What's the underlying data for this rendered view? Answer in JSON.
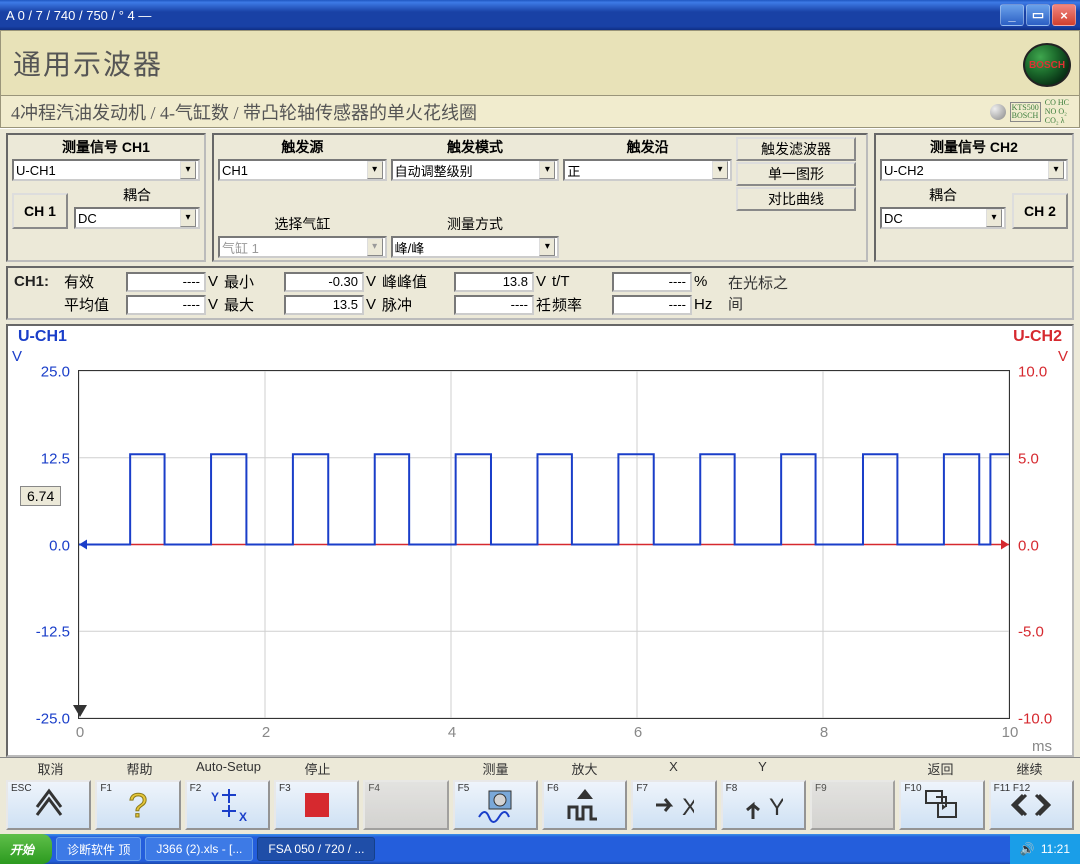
{
  "titlebar": {
    "caption": " A  0 / 7   / 740 / 750 / ° 4 —"
  },
  "header": {
    "title": "通用示波器",
    "logo_text": "BOSCH"
  },
  "breadcrumb": "4冲程汽油发动机 / 4-气缸数 / 带凸轮轴传感器的单火花线圈",
  "ctrl": {
    "ch1_sig_label": "测量信号 CH1",
    "ch1_sig_value": "U-CH1",
    "ch1_couple_label": "耦合",
    "ch1_couple_value": "DC",
    "ch1_btn": "CH 1",
    "trig_src_label": "触发源",
    "trig_src_value": "CH1",
    "trig_mode_label": "触发模式",
    "trig_mode_value": "自动调整级别",
    "trig_slope_label": "触发沿",
    "trig_slope_value": "正",
    "sel_cyl_label": "选择气缸",
    "sel_cyl_value": "气缸 1",
    "meas_mode_label": "测量方式",
    "meas_mode_value": "峰/峰",
    "btn_filter": "触发滤波器",
    "btn_single": "单一图形",
    "btn_compare": "对比曲线",
    "ch2_sig_label": "测量信号 CH2",
    "ch2_sig_value": "U-CH2",
    "ch2_couple_label": "耦合",
    "ch2_couple_value": "DC",
    "ch2_btn": "CH 2"
  },
  "meas": {
    "ch_label": "CH1:",
    "rms_l": "有效",
    "rms_v": "----",
    "rms_u": "V",
    "min_l": "最小",
    "min_v": "-0.30",
    "min_u": "V",
    "pp_l": "峰峰值",
    "pp_v": "13.8",
    "pp_u": "V",
    "tT_l": "t/T",
    "tT_v": "----",
    "tT_u": "%",
    "avg_l": "平均值",
    "avg_v": "----",
    "avg_u": "V",
    "max_l": "最大",
    "max_v": "13.5",
    "max_u": "V",
    "pul_l": "脉冲",
    "pul_v": "----",
    "pul_u": "祍",
    "frq_l": "频率",
    "frq_v": "----",
    "frq_u": "Hz",
    "cursor_note": "在光标之间"
  },
  "wave": {
    "ch1_name": "U-CH1",
    "ch2_name": "U-CH2",
    "ch1_color": "#1a3ec9",
    "ch2_color": "#d6292f",
    "grid_color": "#cfcfcf",
    "bg": "#ffffff",
    "y1_unit": "V",
    "y2_unit": "V",
    "x_unit": "ms",
    "y1_ticks": [
      25.0,
      12.5,
      0.0,
      -12.5,
      -25.0
    ],
    "y2_ticks": [
      10.0,
      5.0,
      0.0,
      -5.0,
      -10.0
    ],
    "x_ticks": [
      0,
      2,
      4,
      6,
      8,
      10
    ],
    "xlim": [
      0,
      10
    ],
    "y1lim": [
      -25,
      25
    ],
    "y2lim": [
      -10,
      10
    ],
    "cursor_value": "6.74",
    "trig_marker_x": 0,
    "trig_box": [
      "↯",
      "1"
    ],
    "line_width": 2,
    "pulses": {
      "baseline": 0.0,
      "high": 13.0,
      "edges": [
        [
          0.55,
          0.92
        ],
        [
          1.42,
          1.8
        ],
        [
          2.3,
          2.68
        ],
        [
          3.18,
          3.55
        ],
        [
          4.05,
          4.43
        ],
        [
          4.93,
          5.3
        ],
        [
          5.8,
          6.18
        ],
        [
          6.68,
          7.05
        ],
        [
          7.55,
          7.92
        ],
        [
          8.43,
          8.8
        ],
        [
          9.3,
          9.68
        ]
      ],
      "last_rise": 9.8
    },
    "ch2_line_y": 0.0
  },
  "softkeys": {
    "labels": [
      "取消",
      "帮助",
      "Auto-Setup",
      "停止",
      "",
      "测量",
      "放大",
      "X",
      "Y",
      "",
      "返回",
      "继续"
    ],
    "caps": [
      "ESC",
      "F1",
      "F2",
      "F3",
      "F4",
      "F5",
      "F6",
      "F7",
      "F8",
      "F9",
      "F10",
      "F11  F12"
    ]
  },
  "taskbar": {
    "start": "开始",
    "tasks": [
      {
        "label": "诊断软件 顶",
        "active": false
      },
      {
        "label": "J366 (2).xls - [...",
        "active": false
      },
      {
        "label": "FSA 050 / 720 / ...",
        "active": true
      }
    ],
    "clock": "11:21"
  }
}
